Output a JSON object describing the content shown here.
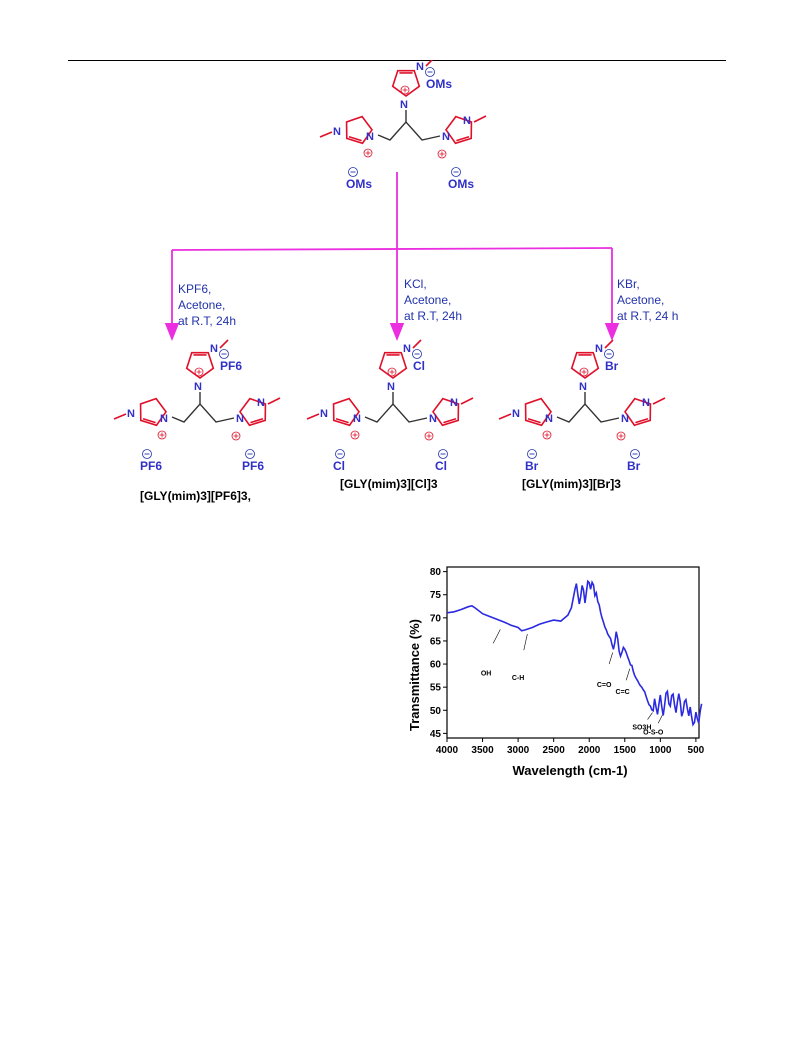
{
  "scheme": {
    "top": {
      "anions": [
        "OMs",
        "OMs",
        "OMs"
      ]
    },
    "conditions": [
      [
        "KPF6,",
        "Acetone,",
        "at R.T, 24h"
      ],
      [
        "KCl,",
        "Acetone,",
        "at R.T, 24h"
      ],
      [
        "KBr,",
        "Acetone,",
        "at R.T, 24 h"
      ]
    ],
    "products": [
      {
        "anions": [
          "PF6",
          "PF6",
          "PF6"
        ],
        "label": "[GLY(mim)3][PF6]3,"
      },
      {
        "anions": [
          "Cl",
          "Cl",
          "Cl"
        ],
        "label": "[GLY(mim)3][Cl]3"
      },
      {
        "anions": [
          "Br",
          "Br",
          "Br"
        ],
        "label": "[GLY(mim)3][Br]3"
      }
    ]
  },
  "chart_data": {
    "type": "line",
    "xlabel": "Wavelength (cm-1)",
    "ylabel": "Transmittance (%)",
    "xlim": [
      4000,
      400
    ],
    "ylim": [
      44,
      81
    ],
    "xticks": [
      4000,
      3500,
      3000,
      2500,
      2000,
      1500,
      1000,
      500
    ],
    "yticks": [
      45,
      50,
      55,
      60,
      65,
      70,
      75,
      80
    ],
    "series": [
      {
        "color": "#2a2ae0",
        "x": [
          4000,
          3900,
          3800,
          3700,
          3650,
          3600,
          3500,
          3400,
          3300,
          3200,
          3100,
          3000,
          2950,
          2900,
          2800,
          2700,
          2600,
          2500,
          2400,
          2300,
          2250,
          2200,
          2180,
          2160,
          2140,
          2120,
          2100,
          2080,
          2060,
          2040,
          2020,
          2000,
          1980,
          1960,
          1940,
          1920,
          1900,
          1880,
          1860,
          1840,
          1820,
          1800,
          1780,
          1760,
          1740,
          1720,
          1700,
          1680,
          1660,
          1640,
          1620,
          1600,
          1580,
          1560,
          1540,
          1520,
          1500,
          1480,
          1460,
          1440,
          1420,
          1400,
          1380,
          1360,
          1340,
          1320,
          1300,
          1280,
          1260,
          1240,
          1220,
          1200,
          1180,
          1160,
          1140,
          1120,
          1100,
          1080,
          1060,
          1040,
          1020,
          1000,
          980,
          960,
          940,
          920,
          900,
          880,
          860,
          840,
          820,
          800,
          780,
          760,
          740,
          720,
          700,
          680,
          660,
          640,
          620,
          600,
          580,
          560,
          540,
          520,
          500,
          480,
          460,
          440,
          420
        ],
        "y": [
          71.1,
          71.3,
          71.8,
          72.4,
          72.6,
          72.1,
          70.9,
          70.3,
          69.7,
          69.1,
          68.4,
          67.9,
          67.2,
          67.4,
          67.9,
          68.6,
          69.1,
          69.5,
          69.3,
          70.6,
          72.2,
          76.2,
          77.4,
          75.1,
          73.0,
          74.6,
          77.0,
          76.0,
          73.2,
          75.6,
          77.9,
          77.6,
          76.2,
          77.7,
          77.1,
          74.8,
          75.4,
          73.5,
          72.8,
          71.2,
          70.0,
          69.1,
          68.0,
          67.4,
          66.5,
          66.0,
          65.5,
          64.2,
          63.2,
          64.6,
          67.0,
          65.5,
          62.8,
          61.7,
          62.5,
          63.6,
          63.2,
          62.5,
          61.6,
          60.8,
          59.8,
          59.7,
          58.4,
          57.5,
          56.9,
          56.4,
          55.8,
          55.3,
          55.0,
          54.4,
          54.0,
          53.0,
          52.1,
          51.2,
          50.9,
          50.1,
          49.9,
          52.5,
          50.6,
          49.1,
          51.3,
          53.3,
          50.7,
          48.9,
          51.1,
          53.7,
          54.1,
          51.4,
          50.9,
          53.2,
          53.5,
          51.1,
          49.5,
          51.8,
          53.6,
          51.9,
          48.7,
          49.7,
          51.9,
          52.3,
          50.3,
          48.8,
          50.7,
          48.6,
          46.9,
          47.4,
          49.6,
          48.2,
          47.2,
          49.8,
          51.4
        ]
      }
    ],
    "annotations": [
      "OH",
      "C-H",
      "C=O",
      "C=C",
      "SO3H",
      "O-S-O"
    ]
  }
}
